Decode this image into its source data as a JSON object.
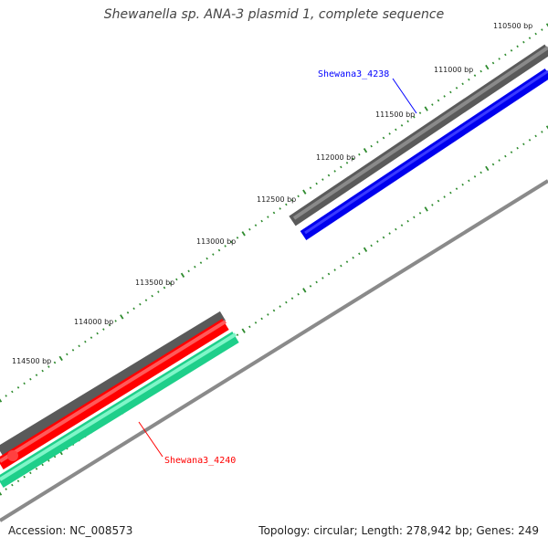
{
  "title": "Shewanella sp. ANA-3 plasmid 1, complete sequence",
  "footer": {
    "accession": "Accession: NC_008573",
    "topology": "Topology: circular; Length: 278,942 bp; Genes: 249"
  },
  "ticks": [
    {
      "label": "110500 bp"
    },
    {
      "label": "111000 bp"
    },
    {
      "label": "111500 bp"
    },
    {
      "label": "112000 bp"
    },
    {
      "label": "112500 bp"
    },
    {
      "label": "113000 bp"
    },
    {
      "label": "113500 bp"
    },
    {
      "label": "114000 bp"
    },
    {
      "label": "114500 bp"
    }
  ],
  "genes": [
    {
      "name": "Shewana3_4238",
      "color": "#0000ff"
    },
    {
      "name": "Shewana3_4240",
      "color": "#ff0000"
    }
  ],
  "colors": {
    "backbone": "#8c8c8c",
    "feature_dark": "#6e6e6e",
    "blue_feature": "#0000ff",
    "red_feature": "#ff0000",
    "green_feature": "#2ee8a0",
    "tick": "#2e8b2e"
  }
}
